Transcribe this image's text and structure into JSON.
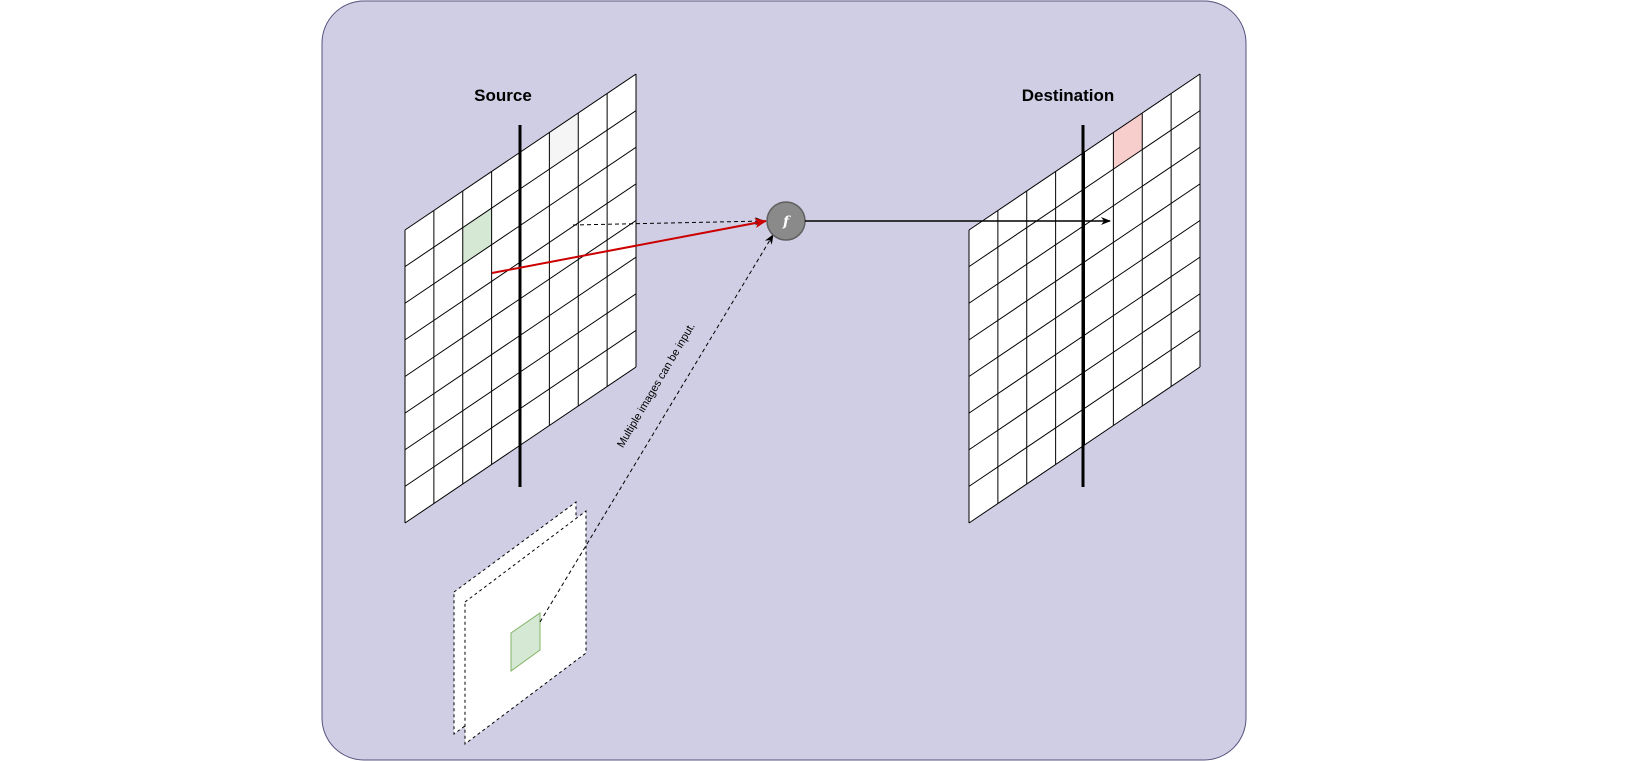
{
  "diagram": {
    "source_title": "Source",
    "destination_title": "Destination",
    "function_symbol": "f",
    "annotation": "Multiple images can be input.",
    "colors": {
      "panel_background": "#d0cee4",
      "panel_border": "#56517e",
      "highlight_green": "#d5e8d4",
      "highlight_green_border": "#82b366",
      "highlight_red": "#f8cecc",
      "highlight_gray": "#f5f5f5",
      "arrow_red": "#cc0000",
      "function_fill": "#8a8a8a"
    },
    "grid": {
      "columns": 8,
      "rows": 8
    }
  }
}
